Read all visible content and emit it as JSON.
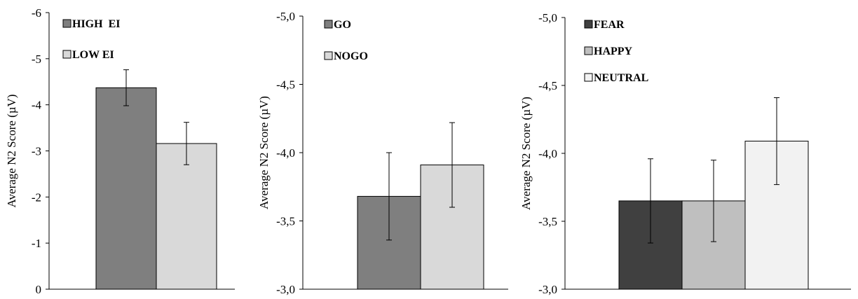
{
  "chart_data": [
    {
      "type": "bar",
      "ylabel": "Average N2 Score (µV)",
      "y_inverted": true,
      "ylim": [
        0,
        -6
      ],
      "y_ticks": [
        0,
        -1,
        -2,
        -3,
        -4,
        -5,
        -6
      ],
      "y_tick_labels": [
        "0",
        "-1",
        "-2",
        "-3",
        "-4",
        "-5",
        "-6"
      ],
      "legend_position": "top-left",
      "series": [
        {
          "name": "HIGH  EI",
          "value": -4.37,
          "error": 0.39,
          "color": "#7f7f7f"
        },
        {
          "name": "LOW EI",
          "value": -3.16,
          "error": 0.46,
          "color": "#d9d9d9"
        }
      ]
    },
    {
      "type": "bar",
      "ylabel": "Average N2 Score (µV)",
      "y_inverted": true,
      "ylim": [
        -3.0,
        -5.0
      ],
      "y_ticks": [
        -3.0,
        -3.5,
        -4.0,
        -4.5,
        -5.0
      ],
      "y_tick_labels": [
        "-3,0",
        "-3,5",
        "-4,0",
        "-4,5",
        "-5,0"
      ],
      "legend_position": "top-left",
      "series": [
        {
          "name": "GO",
          "value": -3.68,
          "error": 0.32,
          "color": "#7f7f7f"
        },
        {
          "name": "NOGO",
          "value": -3.91,
          "error": 0.31,
          "color": "#d9d9d9"
        }
      ]
    },
    {
      "type": "bar",
      "ylabel": "Average N2 Score (µV)",
      "y_inverted": true,
      "ylim": [
        -3.0,
        -5.0
      ],
      "y_ticks": [
        -3.0,
        -3.5,
        -4.0,
        -4.5,
        -5.0
      ],
      "y_tick_labels": [
        "-3,0",
        "-3,5",
        "-4,0",
        "-4,5",
        "-5,0"
      ],
      "legend_position": "top-left",
      "series": [
        {
          "name": "FEAR",
          "value": -3.65,
          "error": 0.31,
          "color": "#404040"
        },
        {
          "name": "HAPPY",
          "value": -3.65,
          "error": 0.3,
          "color": "#bfbfbf"
        },
        {
          "name": "NEUTRAL",
          "value": -4.09,
          "error": 0.32,
          "color": "#f2f2f2"
        }
      ]
    }
  ]
}
